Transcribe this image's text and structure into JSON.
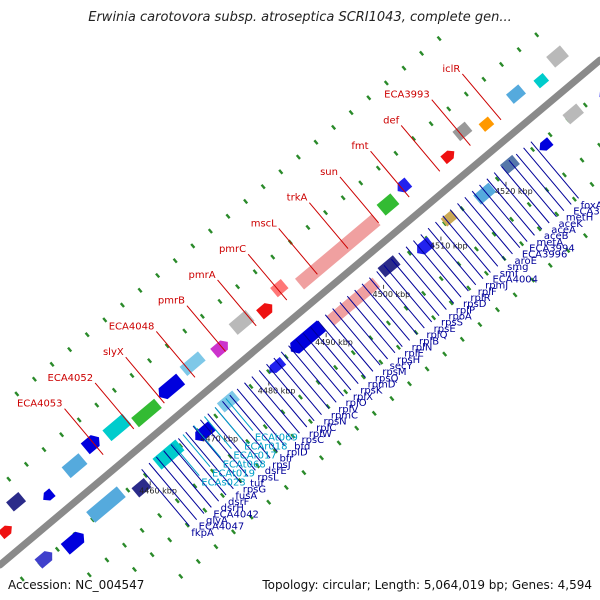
{
  "title": "Erwinia carotovora subsp. atroseptica SCRI1043, complete gen...",
  "footer": {
    "accession": "Accession: NC_004547",
    "summary": "Topology: circular; Length: 5,064,019 bp; Genes: 4,594"
  },
  "colors": {
    "red_label": "#cc0000",
    "blue_label": "#000099",
    "cyan_label": "#00a0c8",
    "backbone": "#8a8a8a",
    "dots": "#2a8a2a"
  },
  "kbp_ticks": [
    "4460 kbp",
    "4470 kbp",
    "4480 kbp",
    "4490 kbp",
    "4500 kbp",
    "4510 kbp",
    "4520 kbp"
  ],
  "labels": {
    "red": [
      "ECA4053",
      "ECA4052",
      "slyX",
      "ECA4048",
      "pmrB",
      "pmrA",
      "pmrC",
      "mscL",
      "trkA",
      "sun",
      "fmt",
      "def",
      "ECA3993",
      "iclR"
    ],
    "blue": [
      "fkpA",
      "ECA4047",
      "glyA",
      "ECA4042",
      "dsrH",
      "dsrF",
      "fusA",
      "rpsG",
      "tuf",
      "rpsL",
      "dsrE",
      "rpsJ",
      "bfr",
      "rplD",
      "bfd",
      "rpsC",
      "rplW",
      "rplC",
      "rpsN",
      "rpmC",
      "rplV",
      "rplO",
      "rplX",
      "rpsK",
      "rpmD",
      "rpsQ",
      "rpsM",
      "secY",
      "rpsH",
      "rplE",
      "rplN",
      "rplB",
      "rplQ",
      "rpsE",
      "rpsS",
      "rpoA",
      "rplP",
      "rpsD",
      "rplR",
      "rplF",
      "rpmJ",
      "ECA4004",
      "smf",
      "smg",
      "aroE",
      "ECA3996",
      "ECA3994",
      "metA",
      "aceB",
      "aceA",
      "aceK",
      "metH",
      "ECA3986",
      "foxA"
    ],
    "cyan": [
      "ECAs023",
      "ECAt019",
      "ECAt068",
      "ECAr017",
      "ECAr018",
      "ECAt069"
    ]
  }
}
